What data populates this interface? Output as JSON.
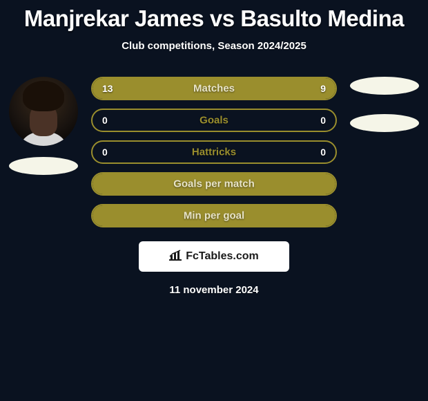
{
  "title": "Manjrekar James vs Basulto Medina",
  "subtitle": "Club competitions, Season 2024/2025",
  "date": "11 november 2024",
  "logo_text": "FcTables.com",
  "background_color": "#0a1220",
  "accent_color": "#9a8e2d",
  "pill_border_color": "#9a8e2d",
  "pill_fill_color": "#9a8e2d",
  "label_color_on_fill": "#e8e4c8",
  "label_color_on_empty": "#9a8e2d",
  "ellipse_color": "#f5f5e8",
  "stats": [
    {
      "label": "Matches",
      "left_value": "13",
      "right_value": "9",
      "left_pct": 59,
      "right_pct": 41,
      "label_color": "#e8e4c8"
    },
    {
      "label": "Goals",
      "left_value": "0",
      "right_value": "0",
      "left_pct": 0,
      "right_pct": 0,
      "label_color": "#9a8e2d"
    },
    {
      "label": "Hattricks",
      "left_value": "0",
      "right_value": "0",
      "left_pct": 0,
      "right_pct": 0,
      "label_color": "#9a8e2d"
    },
    {
      "label": "Goals per match",
      "left_value": "",
      "right_value": "",
      "left_pct": 100,
      "right_pct": 0,
      "label_color": "#e8e4c8"
    },
    {
      "label": "Min per goal",
      "left_value": "",
      "right_value": "",
      "left_pct": 100,
      "right_pct": 0,
      "label_color": "#e8e4c8"
    }
  ],
  "player_left": {
    "has_photo": true
  },
  "player_right": {
    "has_photo": false
  }
}
